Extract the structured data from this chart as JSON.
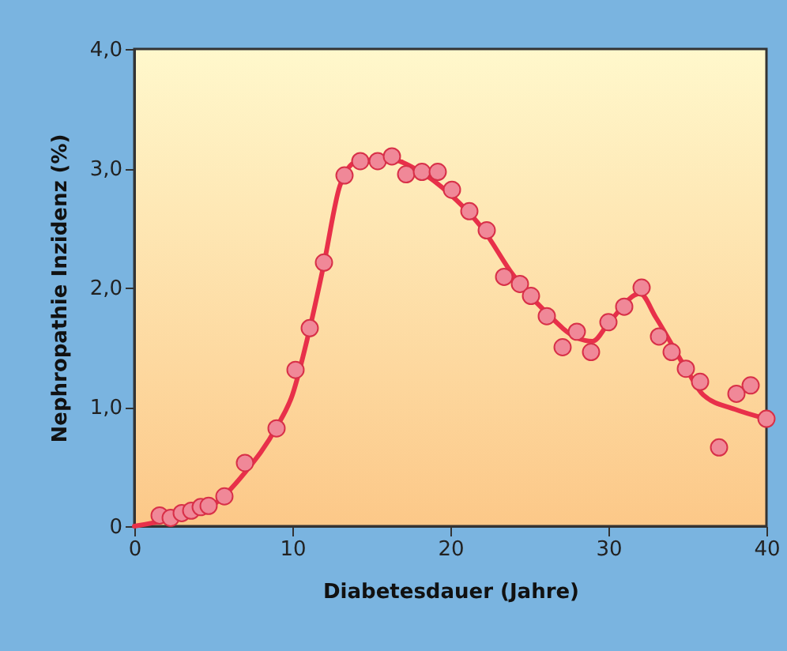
{
  "chart_data": {
    "type": "line",
    "xlabel": "Diabetesdauer (Jahre)",
    "ylabel": "Nephropathie Inzidenz (%)",
    "xlim": [
      0,
      40
    ],
    "xticks": [
      0,
      10,
      20,
      30,
      40
    ],
    "ylim": [
      0,
      4
    ],
    "yticks": [
      0,
      {
        "value": 1,
        "label": "1,0"
      },
      {
        "value": 2,
        "label": "2,0"
      },
      {
        "value": 3,
        "label": "3,0"
      },
      {
        "value": 4,
        "label": "4,0"
      }
    ],
    "grid": false,
    "series": [
      {
        "type": "line",
        "color": "#e8304a",
        "marker": "none",
        "x": [
          0,
          2,
          5,
          7,
          9,
          10,
          11,
          12,
          13,
          14,
          16,
          18,
          20,
          22,
          24,
          26,
          28,
          29,
          30,
          32,
          33,
          35,
          36,
          38,
          40
        ],
        "values": [
          0,
          0.05,
          0.18,
          0.45,
          0.83,
          1.1,
          1.6,
          2.2,
          2.85,
          3.05,
          3.08,
          2.98,
          2.78,
          2.5,
          2.1,
          1.8,
          1.58,
          1.55,
          1.7,
          1.95,
          1.75,
          1.3,
          1.1,
          0.98,
          0.9
        ]
      },
      {
        "type": "scatter",
        "color": "#f08898",
        "marker": "circle",
        "x": [
          1.6,
          2.3,
          3.0,
          3.6,
          4.2,
          4.7,
          5.7,
          7.0,
          9.0,
          10.2,
          11.1,
          12.0,
          13.3,
          14.3,
          15.4,
          16.3,
          17.2,
          18.2,
          19.2,
          20.1,
          21.2,
          22.3,
          23.4,
          24.4,
          25.1,
          26.1,
          27.1,
          28.0,
          28.9,
          30.0,
          31.0,
          32.1,
          33.2,
          34.0,
          34.9,
          35.8,
          37.0,
          38.1,
          39.0,
          40.0
        ],
        "values": [
          0.09,
          0.07,
          0.11,
          0.13,
          0.16,
          0.17,
          0.25,
          0.53,
          0.82,
          1.31,
          1.66,
          2.21,
          2.94,
          3.06,
          3.06,
          3.1,
          2.95,
          2.97,
          2.97,
          2.82,
          2.64,
          2.48,
          2.09,
          2.03,
          1.93,
          1.76,
          1.5,
          1.63,
          1.46,
          1.71,
          1.84,
          2.0,
          1.59,
          1.46,
          1.32,
          1.21,
          0.66,
          1.11,
          1.18,
          0.9
        ]
      }
    ]
  }
}
